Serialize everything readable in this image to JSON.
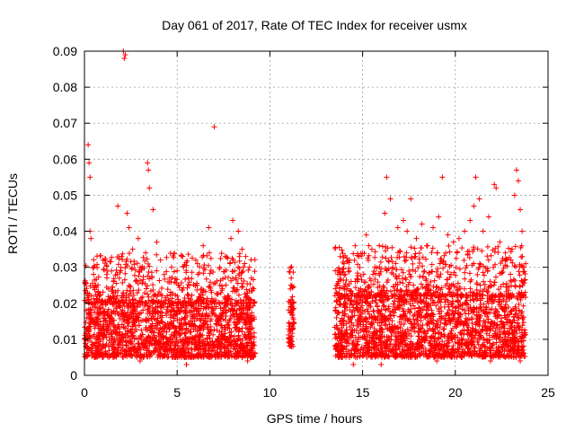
{
  "chart_data": {
    "type": "scatter",
    "title": "Day 061 of 2017, Rate Of TEC Index for receiver usmx",
    "xlabel": "GPS time / hours",
    "ylabel": "ROTI / TECUs",
    "xlim": [
      0,
      25
    ],
    "ylim": [
      0,
      0.09
    ],
    "x_ticks": [
      "0",
      "5",
      "10",
      "15",
      "20",
      "25"
    ],
    "y_ticks": [
      "0",
      "0.01",
      "0.02",
      "0.03",
      "0.04",
      "0.05",
      "0.06",
      "0.07",
      "0.08",
      "0.09"
    ],
    "grid": true,
    "marker": "+",
    "series": [
      {
        "color": "#ff0000",
        "points": [
          [
            0.1,
            0.018
          ],
          [
            0.2,
            0.064
          ],
          [
            0.25,
            0.059
          ],
          [
            0.3,
            0.055
          ],
          [
            0.3,
            0.04
          ],
          [
            0.35,
            0.038
          ],
          [
            0.5,
            0.03
          ],
          [
            0.6,
            0.025
          ],
          [
            0.8,
            0.022
          ],
          [
            1.0,
            0.032
          ],
          [
            1.2,
            0.028
          ],
          [
            1.3,
            0.024
          ],
          [
            1.6,
            0.02
          ],
          [
            1.8,
            0.047
          ],
          [
            2.0,
            0.033
          ],
          [
            2.1,
            0.09
          ],
          [
            2.15,
            0.088
          ],
          [
            2.2,
            0.089
          ],
          [
            2.3,
            0.045
          ],
          [
            2.4,
            0.041
          ],
          [
            2.6,
            0.035
          ],
          [
            2.9,
            0.038
          ],
          [
            3.0,
            0.03
          ],
          [
            3.3,
            0.034
          ],
          [
            3.4,
            0.059
          ],
          [
            3.45,
            0.057
          ],
          [
            3.5,
            0.052
          ],
          [
            3.7,
            0.046
          ],
          [
            3.9,
            0.037
          ],
          [
            4.1,
            0.032
          ],
          [
            4.3,
            0.028
          ],
          [
            4.7,
            0.03
          ],
          [
            5.0,
            0.029
          ],
          [
            5.3,
            0.033
          ],
          [
            5.6,
            0.027
          ],
          [
            6.1,
            0.031
          ],
          [
            6.4,
            0.036
          ],
          [
            6.7,
            0.041
          ],
          [
            7.0,
            0.069
          ],
          [
            7.3,
            0.03
          ],
          [
            7.6,
            0.033
          ],
          [
            7.9,
            0.038
          ],
          [
            8.0,
            0.043
          ],
          [
            8.3,
            0.04
          ],
          [
            8.5,
            0.035
          ],
          [
            8.7,
            0.033
          ],
          [
            8.9,
            0.03
          ],
          [
            9.0,
            0.027
          ],
          [
            9.1,
            0.005
          ],
          [
            8.8,
            0.004
          ],
          [
            11.1,
            0.024
          ],
          [
            11.15,
            0.021
          ],
          [
            11.2,
            0.018
          ],
          [
            11.2,
            0.014
          ],
          [
            11.1,
            0.01
          ],
          [
            11.15,
            0.008
          ],
          [
            13.6,
            0.025
          ],
          [
            13.8,
            0.028
          ],
          [
            14.0,
            0.031
          ],
          [
            14.3,
            0.032
          ],
          [
            14.6,
            0.036
          ],
          [
            14.8,
            0.033
          ],
          [
            15.2,
            0.039
          ],
          [
            15.5,
            0.035
          ],
          [
            15.9,
            0.036
          ],
          [
            16.2,
            0.045
          ],
          [
            16.3,
            0.055
          ],
          [
            16.5,
            0.049
          ],
          [
            16.9,
            0.041
          ],
          [
            17.2,
            0.043
          ],
          [
            17.4,
            0.04
          ],
          [
            17.6,
            0.049
          ],
          [
            17.9,
            0.038
          ],
          [
            18.2,
            0.042
          ],
          [
            18.5,
            0.036
          ],
          [
            18.8,
            0.041
          ],
          [
            19.1,
            0.044
          ],
          [
            19.3,
            0.055
          ],
          [
            19.6,
            0.039
          ],
          [
            19.9,
            0.037
          ],
          [
            20.2,
            0.038
          ],
          [
            20.5,
            0.04
          ],
          [
            20.8,
            0.043
          ],
          [
            21.0,
            0.047
          ],
          [
            21.1,
            0.055
          ],
          [
            21.3,
            0.049
          ],
          [
            21.5,
            0.04
          ],
          [
            21.8,
            0.044
          ],
          [
            22.1,
            0.053
          ],
          [
            22.2,
            0.052
          ],
          [
            22.4,
            0.037
          ],
          [
            22.7,
            0.034
          ],
          [
            23.0,
            0.032
          ],
          [
            23.2,
            0.05
          ],
          [
            23.3,
            0.057
          ],
          [
            23.4,
            0.054
          ],
          [
            23.5,
            0.046
          ],
          [
            23.6,
            0.04
          ],
          [
            23.7,
            0.03
          ],
          [
            14.5,
            0.003
          ],
          [
            16.0,
            0.003
          ],
          [
            19.0,
            0.004
          ],
          [
            21.9,
            0.004
          ],
          [
            23.5,
            0.004
          ],
          [
            3.0,
            0.004
          ],
          [
            5.5,
            0.003
          ]
        ],
        "bands": [
          {
            "x0": 0.0,
            "x1": 9.2,
            "y0": 0.005,
            "y1": 0.02
          },
          {
            "x0": 13.5,
            "x1": 23.8,
            "y0": 0.005,
            "y1": 0.022
          },
          {
            "x0": 11.0,
            "x1": 11.3,
            "y0": 0.008,
            "y1": 0.02
          }
        ]
      }
    ]
  }
}
